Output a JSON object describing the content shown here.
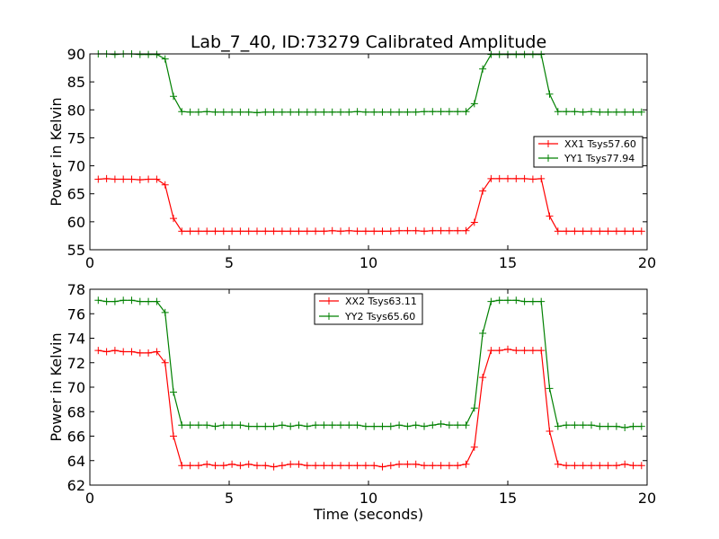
{
  "chart_data": [
    {
      "type": "line",
      "title": "Lab_7_40, ID:73279 Calibrated Amplitude",
      "xlabel": "",
      "ylabel": "Power in Kelvin",
      "xlim": [
        0,
        20
      ],
      "ylim": [
        55,
        90
      ],
      "xticks": [
        "0",
        "5",
        "10",
        "15",
        "20"
      ],
      "yticks": [
        "55",
        "60",
        "65",
        "70",
        "75",
        "80",
        "85",
        "90"
      ],
      "grid": false,
      "legend_position": "center-right",
      "x": [
        0.3,
        0.6,
        0.9,
        1.2,
        1.5,
        1.8,
        2.1,
        2.4,
        2.7,
        3.0,
        3.3,
        3.6,
        3.9,
        4.2,
        4.5,
        4.8,
        5.1,
        5.4,
        5.7,
        6.0,
        6.3,
        6.6,
        6.9,
        7.2,
        7.5,
        7.8,
        8.1,
        8.4,
        8.7,
        9.0,
        9.3,
        9.6,
        9.9,
        10.2,
        10.5,
        10.8,
        11.1,
        11.4,
        11.7,
        12.0,
        12.3,
        12.6,
        12.9,
        13.2,
        13.5,
        13.8,
        14.1,
        14.4,
        14.7,
        15.0,
        15.3,
        15.6,
        15.9,
        16.2,
        16.5,
        16.8,
        17.1,
        17.4,
        17.7,
        18.0,
        18.3,
        18.6,
        18.9,
        19.2,
        19.5,
        19.8
      ],
      "series": [
        {
          "name": "XX1 Tsys57.60",
          "color": "#ff0000",
          "values": [
            67.6,
            67.7,
            67.6,
            67.6,
            67.6,
            67.5,
            67.6,
            67.6,
            66.6,
            60.6,
            58.3,
            58.3,
            58.3,
            58.3,
            58.3,
            58.3,
            58.3,
            58.3,
            58.3,
            58.3,
            58.3,
            58.3,
            58.3,
            58.3,
            58.3,
            58.3,
            58.3,
            58.3,
            58.4,
            58.3,
            58.4,
            58.3,
            58.3,
            58.3,
            58.3,
            58.3,
            58.4,
            58.4,
            58.4,
            58.3,
            58.4,
            58.4,
            58.4,
            58.4,
            58.4,
            59.9,
            65.5,
            67.7,
            67.7,
            67.7,
            67.7,
            67.7,
            67.6,
            67.7,
            61.0,
            58.3,
            58.3,
            58.3,
            58.3,
            58.3,
            58.3,
            58.3,
            58.3,
            58.3,
            58.3,
            58.3
          ]
        },
        {
          "name": "YY1 Tsys77.94",
          "color": "#008000",
          "values": [
            90.0,
            90.0,
            89.9,
            90.0,
            90.0,
            89.9,
            89.9,
            89.9,
            89.1,
            82.4,
            79.7,
            79.6,
            79.6,
            79.7,
            79.6,
            79.6,
            79.6,
            79.6,
            79.6,
            79.5,
            79.6,
            79.6,
            79.6,
            79.6,
            79.6,
            79.6,
            79.6,
            79.6,
            79.6,
            79.6,
            79.6,
            79.7,
            79.6,
            79.6,
            79.6,
            79.6,
            79.6,
            79.6,
            79.6,
            79.7,
            79.7,
            79.7,
            79.7,
            79.7,
            79.7,
            81.1,
            87.3,
            89.9,
            89.9,
            89.9,
            89.9,
            89.9,
            89.9,
            89.9,
            82.8,
            79.7,
            79.7,
            79.7,
            79.6,
            79.7,
            79.6,
            79.6,
            79.6,
            79.6,
            79.6,
            79.6
          ]
        }
      ]
    },
    {
      "type": "line",
      "title": "",
      "xlabel": "Time (seconds)",
      "ylabel": "Power in Kelvin",
      "xlim": [
        0,
        20
      ],
      "ylim": [
        62,
        78
      ],
      "xticks": [
        "0",
        "5",
        "10",
        "15",
        "20"
      ],
      "yticks": [
        "62",
        "64",
        "66",
        "68",
        "70",
        "72",
        "74",
        "76",
        "78"
      ],
      "grid": false,
      "legend_position": "top-center",
      "x": [
        0.3,
        0.6,
        0.9,
        1.2,
        1.5,
        1.8,
        2.1,
        2.4,
        2.7,
        3.0,
        3.3,
        3.6,
        3.9,
        4.2,
        4.5,
        4.8,
        5.1,
        5.4,
        5.7,
        6.0,
        6.3,
        6.6,
        6.9,
        7.2,
        7.5,
        7.8,
        8.1,
        8.4,
        8.7,
        9.0,
        9.3,
        9.6,
        9.9,
        10.2,
        10.5,
        10.8,
        11.1,
        11.4,
        11.7,
        12.0,
        12.3,
        12.6,
        12.9,
        13.2,
        13.5,
        13.8,
        14.1,
        14.4,
        14.7,
        15.0,
        15.3,
        15.6,
        15.9,
        16.2,
        16.5,
        16.8,
        17.1,
        17.4,
        17.7,
        18.0,
        18.3,
        18.6,
        18.9,
        19.2,
        19.5,
        19.8
      ],
      "series": [
        {
          "name": "XX2 Tsys63.11",
          "color": "#ff0000",
          "values": [
            73.0,
            72.9,
            73.0,
            72.9,
            72.9,
            72.8,
            72.8,
            72.9,
            72.0,
            66.0,
            63.6,
            63.6,
            63.6,
            63.7,
            63.6,
            63.6,
            63.7,
            63.6,
            63.7,
            63.6,
            63.6,
            63.5,
            63.6,
            63.7,
            63.7,
            63.6,
            63.6,
            63.6,
            63.6,
            63.6,
            63.6,
            63.6,
            63.6,
            63.6,
            63.5,
            63.6,
            63.7,
            63.7,
            63.7,
            63.6,
            63.6,
            63.6,
            63.6,
            63.6,
            63.7,
            65.1,
            70.8,
            73.0,
            73.0,
            73.1,
            73.0,
            73.0,
            73.0,
            73.0,
            66.4,
            63.7,
            63.6,
            63.6,
            63.6,
            63.6,
            63.6,
            63.6,
            63.6,
            63.7,
            63.6,
            63.6
          ]
        },
        {
          "name": "YY2 Tsys65.60",
          "color": "#008000",
          "values": [
            77.1,
            77.0,
            77.0,
            77.1,
            77.1,
            77.0,
            77.0,
            77.0,
            76.1,
            69.6,
            66.9,
            66.9,
            66.9,
            66.9,
            66.8,
            66.9,
            66.9,
            66.9,
            66.8,
            66.8,
            66.8,
            66.8,
            66.9,
            66.8,
            66.9,
            66.8,
            66.9,
            66.9,
            66.9,
            66.9,
            66.9,
            66.9,
            66.8,
            66.8,
            66.8,
            66.8,
            66.9,
            66.8,
            66.9,
            66.8,
            66.9,
            67.0,
            66.9,
            66.9,
            66.9,
            68.3,
            74.4,
            77.0,
            77.1,
            77.1,
            77.1,
            77.0,
            77.0,
            77.0,
            69.9,
            66.8,
            66.9,
            66.9,
            66.9,
            66.9,
            66.8,
            66.8,
            66.8,
            66.7,
            66.8,
            66.8
          ]
        }
      ]
    }
  ]
}
